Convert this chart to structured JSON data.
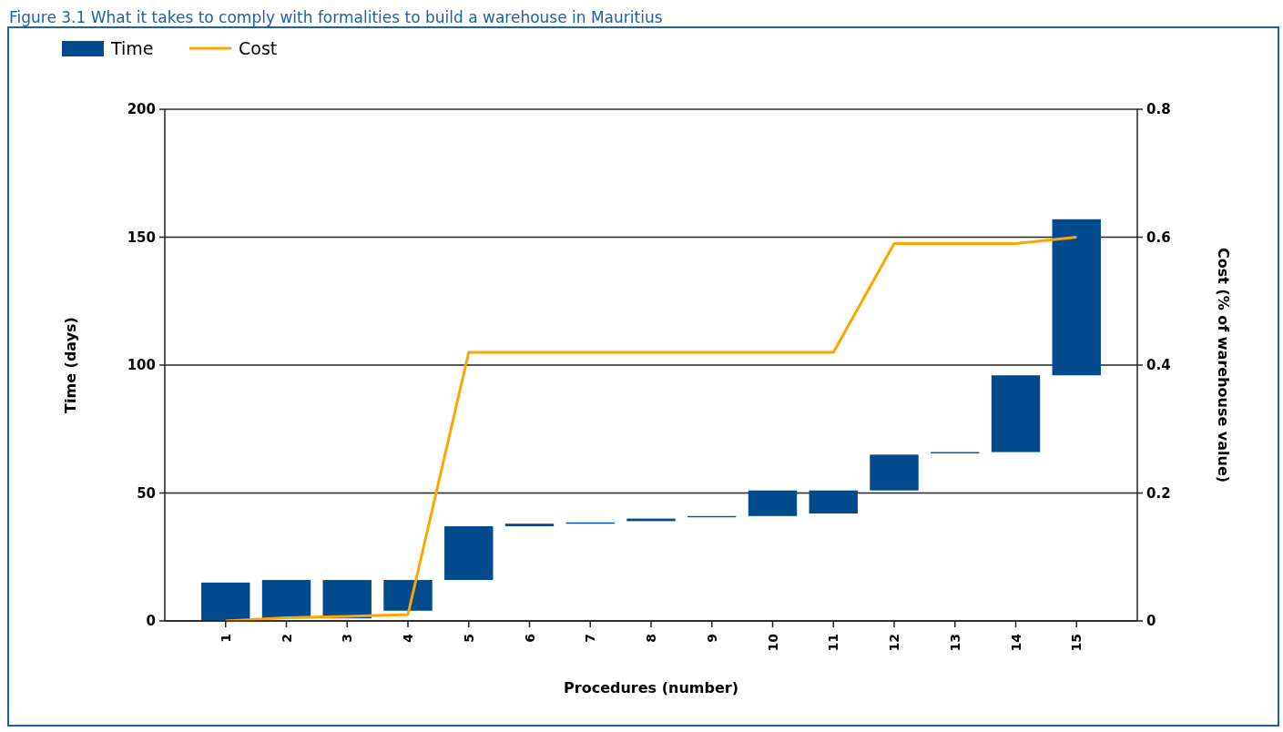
{
  "chart_data": {
    "type": "bar",
    "title": "Figure 3.1 What it takes to comply with formalities to build a warehouse in Mauritius",
    "xlabel": "Procedures (number)",
    "ylabel": "Time (days)",
    "y2label": "Cost (% of warehouse value)",
    "categories": [
      "1",
      "2",
      "3",
      "4",
      "5",
      "6",
      "7",
      "8",
      "9",
      "10",
      "11",
      "12",
      "13",
      "14",
      "15"
    ],
    "series": [
      {
        "name": "Time",
        "color": "#004b8d",
        "values": [
          15,
          15,
          15,
          12,
          21,
          1,
          0.5,
          1,
          0.5,
          10,
          9,
          14,
          0.5,
          30,
          61
        ],
        "base": [
          0,
          1,
          1,
          4,
          16,
          37,
          38,
          39,
          40.5,
          41,
          42,
          51,
          65.5,
          66,
          96
        ]
      },
      {
        "name": "Cost",
        "type": "line",
        "axis": "y2",
        "color": "#ffa500",
        "values": [
          0,
          0.005,
          0.007,
          0.01,
          0.42,
          0.42,
          0.42,
          0.42,
          0.42,
          0.42,
          0.42,
          0.59,
          0.59,
          0.59,
          0.6
        ]
      }
    ],
    "ylim": [
      0,
      200
    ],
    "yticks": [
      0,
      50,
      100,
      150,
      200
    ],
    "y2lim": [
      0,
      0.8
    ],
    "y2ticks": [
      0,
      0.2,
      0.4,
      0.6,
      0.8
    ],
    "grid": "y",
    "legend": "top left",
    "line_style": "solid",
    "marker": "none"
  }
}
